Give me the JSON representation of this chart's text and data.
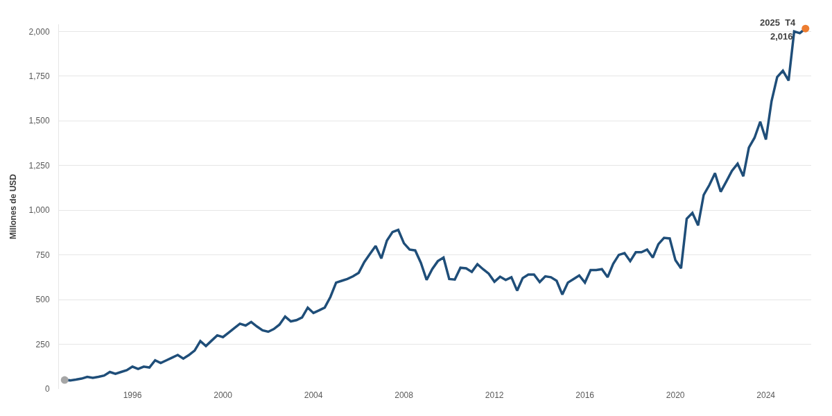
{
  "chart_data": {
    "type": "line",
    "ylabel": "Millones de USD",
    "x": [
      "1993-01",
      "1993-04",
      "1993-07",
      "1993-10",
      "1994-01",
      "1994-04",
      "1994-07",
      "1994-10",
      "1995-01",
      "1995-04",
      "1995-07",
      "1995-10",
      "1996-01",
      "1996-04",
      "1996-07",
      "1996-10",
      "1997-01",
      "1997-04",
      "1997-07",
      "1997-10",
      "1998-01",
      "1998-04",
      "1998-07",
      "1998-10",
      "1999-01",
      "1999-04",
      "1999-07",
      "1999-10",
      "2000-01",
      "2000-04",
      "2000-07",
      "2000-10",
      "2001-01",
      "2001-04",
      "2001-07",
      "2001-10",
      "2002-01",
      "2002-04",
      "2002-07",
      "2002-10",
      "2003-01",
      "2003-04",
      "2003-07",
      "2003-10",
      "2004-01",
      "2004-04",
      "2004-07",
      "2004-10",
      "2005-01",
      "2005-04",
      "2005-07",
      "2005-10",
      "2006-01",
      "2006-04",
      "2006-07",
      "2006-10",
      "2007-01",
      "2007-04",
      "2007-07",
      "2007-10",
      "2008-01",
      "2008-04",
      "2008-07",
      "2008-10",
      "2009-01",
      "2009-04",
      "2009-07",
      "2009-10",
      "2010-01",
      "2010-04",
      "2010-07",
      "2010-10",
      "2011-01",
      "2011-04",
      "2011-07",
      "2011-10",
      "2012-01",
      "2012-04",
      "2012-07",
      "2012-10",
      "2013-01",
      "2013-04",
      "2013-07",
      "2013-10",
      "2014-01",
      "2014-04",
      "2014-07",
      "2014-10",
      "2015-01",
      "2015-04",
      "2015-07",
      "2015-10",
      "2016-01",
      "2016-04",
      "2016-07",
      "2016-10",
      "2017-01",
      "2017-04",
      "2017-07",
      "2017-10",
      "2018-01",
      "2018-04",
      "2018-07",
      "2018-10",
      "2019-01",
      "2019-04",
      "2019-07",
      "2019-10",
      "2020-01",
      "2020-04",
      "2020-07",
      "2020-10",
      "2021-01",
      "2021-04",
      "2021-07",
      "2021-10",
      "2022-01",
      "2022-04",
      "2022-07",
      "2022-10",
      "2023-01",
      "2023-04",
      "2023-07",
      "2023-10",
      "2024-01",
      "2024-04",
      "2024-07",
      "2024-10",
      "2025-01",
      "2025-04",
      "2025-07",
      "2025-10"
    ],
    "series": [
      {
        "color": "#1f4e79",
        "values": [
          50,
          48,
          52,
          58,
          68,
          62,
          68,
          75,
          95,
          85,
          95,
          105,
          125,
          112,
          125,
          120,
          160,
          145,
          160,
          175,
          190,
          170,
          190,
          215,
          268,
          240,
          270,
          300,
          290,
          315,
          340,
          365,
          355,
          375,
          350,
          328,
          320,
          335,
          360,
          405,
          378,
          385,
          400,
          455,
          425,
          440,
          455,
          515,
          595,
          605,
          615,
          630,
          650,
          710,
          755,
          800,
          730,
          830,
          878,
          890,
          815,
          780,
          775,
          705,
          610,
          670,
          715,
          735,
          615,
          612,
          678,
          675,
          655,
          698,
          670,
          645,
          600,
          628,
          610,
          625,
          550,
          620,
          640,
          640,
          598,
          630,
          625,
          605,
          528,
          595,
          615,
          635,
          595,
          665,
          665,
          670,
          625,
          700,
          750,
          760,
          715,
          765,
          765,
          780,
          735,
          810,
          845,
          842,
          720,
          675,
          952,
          985,
          915,
          1085,
          1140,
          1207,
          1103,
          1160,
          1220,
          1260,
          1190,
          1350,
          1405,
          1495,
          1395,
          1610,
          1745,
          1780,
          1725,
          2000,
          1990,
          2016
        ]
      },
      {
        "type": "scatter",
        "color": "#a6a6a6",
        "x": [
          "1993-01"
        ],
        "values": [
          50
        ]
      },
      {
        "type": "scatter",
        "color": "#ed7d31",
        "x": [
          "2025-10"
        ],
        "values": [
          2016
        ]
      }
    ],
    "annotations": [
      {
        "text": "2025  T4",
        "x": "2025-10",
        "y": 2016
      },
      {
        "text": "2,016",
        "x": "2025-10",
        "y": 2016
      }
    ],
    "xlim": [
      "1992-10",
      "2026-01"
    ],
    "xticks": [
      "1996",
      "2000",
      "2004",
      "2008",
      "2012",
      "2016",
      "2020",
      "2024"
    ],
    "ylim": [
      0,
      2040
    ],
    "yticks": [
      0,
      250,
      500,
      750,
      {
        "value": 1000,
        "label": "1,000"
      },
      {
        "value": 1250,
        "label": "1,250"
      },
      {
        "value": 1500,
        "label": "1,500"
      },
      {
        "value": 1750,
        "label": "1,750"
      },
      {
        "value": 2000,
        "label": "2,000"
      }
    ],
    "grid": "y",
    "line_style": "solid"
  }
}
